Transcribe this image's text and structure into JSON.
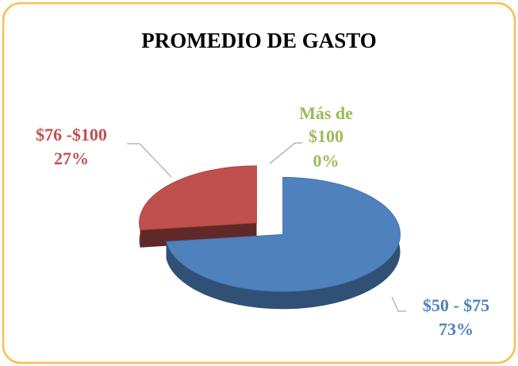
{
  "chart_data": {
    "type": "pie",
    "title": "PROMEDIO DE GASTO",
    "categories": [
      "$50 - $75",
      "$76 -$100",
      "Más de $100"
    ],
    "values": [
      73,
      27,
      0
    ],
    "value_labels": [
      "73%",
      "27%",
      "0%"
    ],
    "colors": [
      "#4f81bd",
      "#c0504d",
      "#9bbb59"
    ]
  }
}
